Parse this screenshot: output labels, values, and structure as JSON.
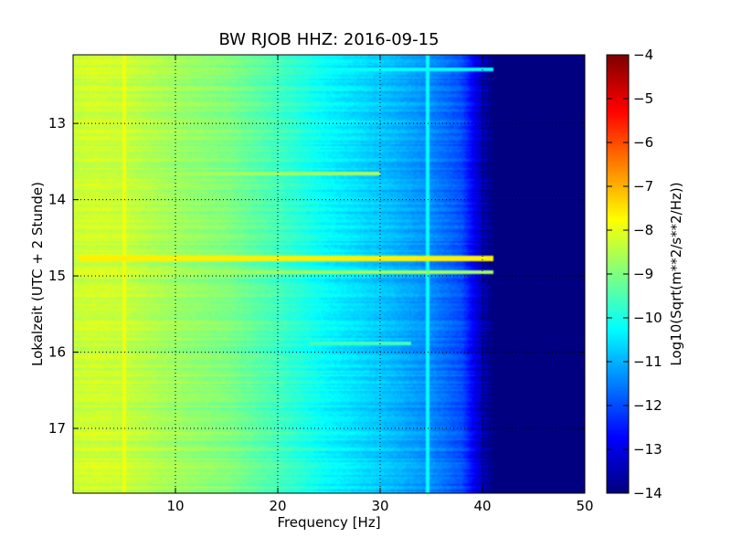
{
  "chart_data": {
    "type": "heatmap",
    "title": "BW RJOB HHZ: 2016-09-15",
    "xlabel": "Frequency [Hz]",
    "ylabel": "Lokalzeit (UTC + 2 Stunde)",
    "xlim": [
      0,
      50
    ],
    "ylim": [
      12.1,
      17.85
    ],
    "y_inverted": true,
    "x_ticks": [
      10,
      20,
      30,
      40,
      50
    ],
    "x_tick_labels": [
      "10",
      "20",
      "30",
      "40",
      "50"
    ],
    "y_ticks": [
      13,
      14,
      15,
      16,
      17
    ],
    "y_tick_labels": [
      "13",
      "14",
      "15",
      "16",
      "17"
    ],
    "grid": true,
    "colormap": "jet",
    "colorbar": {
      "label": "Log10(Sqrt(m**2/s**2/Hz))",
      "range": [
        -14,
        -4
      ],
      "ticks": [
        -4,
        -5,
        -6,
        -7,
        -8,
        -9,
        -10,
        -11,
        -12,
        -13,
        -14
      ],
      "tick_labels": [
        "−4",
        "−5",
        "−6",
        "−7",
        "−8",
        "−9",
        "−10",
        "−11",
        "−12",
        "−13",
        "−14"
      ]
    },
    "spectral_profile": {
      "frequency_hz": [
        0,
        2,
        5,
        10,
        15,
        20,
        25,
        30,
        35,
        38,
        40,
        41,
        50
      ],
      "log10_amplitude": [
        -8.3,
        -8.2,
        -8.3,
        -8.7,
        -9.0,
        -9.6,
        -10.3,
        -10.8,
        -11.4,
        -12.0,
        -13.5,
        -14.0,
        -14.0
      ]
    },
    "features": [
      {
        "kind": "hband",
        "time": 14.77,
        "f_from": 0.5,
        "f_to": 42,
        "level": -7.6
      },
      {
        "kind": "hband",
        "time": 14.95,
        "f_from": 3,
        "f_to": 42,
        "level": -8.7
      },
      {
        "kind": "hband",
        "time": 13.65,
        "f_from": 3,
        "f_to": 30,
        "level": -8.6
      },
      {
        "kind": "hband",
        "time": 12.3,
        "f_from": 20,
        "f_to": 42,
        "level": -10.2
      },
      {
        "kind": "hband",
        "time": 15.88,
        "f_from": 23,
        "f_to": 33,
        "level": -9.6
      },
      {
        "kind": "vline",
        "frequency": 5,
        "level": -7.9
      },
      {
        "kind": "vline",
        "frequency": 20.5,
        "level": -10.1
      },
      {
        "kind": "vline",
        "frequency": 34.6,
        "level": -10.2
      }
    ]
  }
}
